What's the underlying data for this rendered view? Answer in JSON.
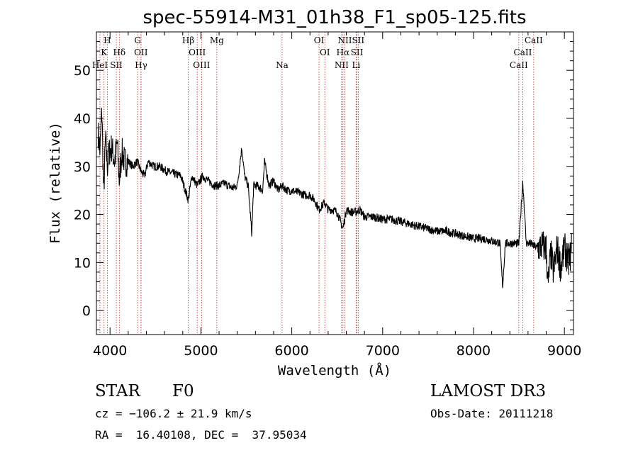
{
  "chart_data": {
    "type": "line",
    "title": "spec-55914-M31_01h38_F1_sp05-125.fits",
    "xlabel": "Wavelength (Å)",
    "ylabel": "Flux (relative)",
    "xlim": [
      3850,
      9100
    ],
    "ylim": [
      -5,
      58
    ],
    "xticks": [
      4000,
      5000,
      6000,
      7000,
      8000,
      9000
    ],
    "yticks": [
      0,
      10,
      20,
      30,
      40,
      50
    ],
    "grid": false,
    "line_color": "#000000",
    "marker_color": "#b22222",
    "spectrum_anchors": {
      "x": [
        3870,
        3890,
        3910,
        3930,
        3950,
        3970,
        3990,
        4020,
        4050,
        4080,
        4101,
        4130,
        4160,
        4200,
        4250,
        4300,
        4340,
        4380,
        4420,
        4480,
        4550,
        4620,
        4700,
        4780,
        4861,
        4900,
        4960,
        5020,
        5080,
        5150,
        5200,
        5260,
        5300,
        5350,
        5400,
        5450,
        5480,
        5520,
        5560,
        5580,
        5620,
        5680,
        5700,
        5750,
        5800,
        5850,
        5890,
        5950,
        6000,
        6080,
        6150,
        6200,
        6250,
        6300,
        6360,
        6400,
        6450,
        6500,
        6563,
        6600,
        6650,
        6700,
        6750,
        6800,
        6900,
        7000,
        7100,
        7200,
        7300,
        7400,
        7500,
        7600,
        7700,
        7800,
        7900,
        8000,
        8100,
        8200,
        8290,
        8320,
        8350,
        8400,
        8450,
        8500,
        8542,
        8580,
        8620,
        8662,
        8700,
        8760,
        8800,
        8820,
        8850,
        8880,
        8920,
        8960,
        9000,
        9050,
        9080
      ],
      "y": [
        37,
        33,
        42,
        24,
        36,
        30,
        33,
        34,
        31,
        35,
        27,
        33,
        31,
        31,
        30,
        31,
        29,
        28,
        31,
        30,
        30,
        29,
        28.5,
        28,
        23,
        28,
        26,
        28,
        27,
        26,
        26,
        26.5,
        26,
        25.5,
        26,
        34,
        28,
        26,
        16,
        26,
        26,
        25,
        31,
        26,
        27,
        25,
        26,
        25,
        25,
        24.5,
        24,
        24,
        23,
        21,
        22.5,
        21,
        21,
        20.5,
        17,
        21,
        20.5,
        20.5,
        21,
        19.5,
        19.5,
        19,
        19,
        18.5,
        18,
        17.5,
        17,
        16.5,
        16.5,
        16,
        15.5,
        15,
        15,
        14.5,
        14,
        5,
        14,
        14,
        14,
        14,
        27,
        14,
        14,
        13.5,
        13,
        13.5,
        13,
        5,
        12,
        8,
        13,
        9,
        13,
        10,
        13
      ]
    },
    "lines": [
      {
        "name": "H",
        "x": 3970,
        "row": 0
      },
      {
        "name": "K",
        "x": 3934,
        "row": 1
      },
      {
        "name": "HeI",
        "x": 3889,
        "row": 2
      },
      {
        "name": "SII",
        "x": 4069,
        "row": 2
      },
      {
        "name": "Hδ",
        "x": 4102,
        "row": 1
      },
      {
        "name": "G",
        "x": 4304,
        "row": 0
      },
      {
        "name": "OII",
        "x": 4340,
        "row": 1
      },
      {
        "name": "Hγ",
        "x": 4341,
        "row": 2
      },
      {
        "name": "Hβ",
        "x": 4861,
        "row": 0
      },
      {
        "name": "OIII",
        "x": 4959,
        "row": 1
      },
      {
        "name": "OIII",
        "x": 5007,
        "row": 2
      },
      {
        "name": "Mg",
        "x": 5175,
        "row": 0
      },
      {
        "name": "Na",
        "x": 5893,
        "row": 2
      },
      {
        "name": "OI",
        "x": 6300,
        "row": 0
      },
      {
        "name": "OI",
        "x": 6364,
        "row": 1
      },
      {
        "name": "NII",
        "x": 6548,
        "row": 2
      },
      {
        "name": "NII",
        "x": 6584,
        "row": 0
      },
      {
        "name": "Hα",
        "x": 6563,
        "row": 1
      },
      {
        "name": "SII",
        "x": 6717,
        "row": 1
      },
      {
        "name": "SII",
        "x": 6731,
        "row": 0
      },
      {
        "name": "Li",
        "x": 6708,
        "row": 2
      },
      {
        "name": "CaII",
        "x": 8498,
        "row": 2
      },
      {
        "name": "CaII",
        "x": 8542,
        "row": 1
      },
      {
        "name": "CaII",
        "x": 8662,
        "row": 0
      }
    ]
  },
  "info": {
    "class": "STAR",
    "subclass": "F0",
    "survey": "LAMOST DR3",
    "cz": "cz = −106.2 ± 21.9 km/s",
    "obsdate": "Obs-Date: 20111218",
    "coords": "RA =  16.40108, DEC =  37.95034"
  }
}
